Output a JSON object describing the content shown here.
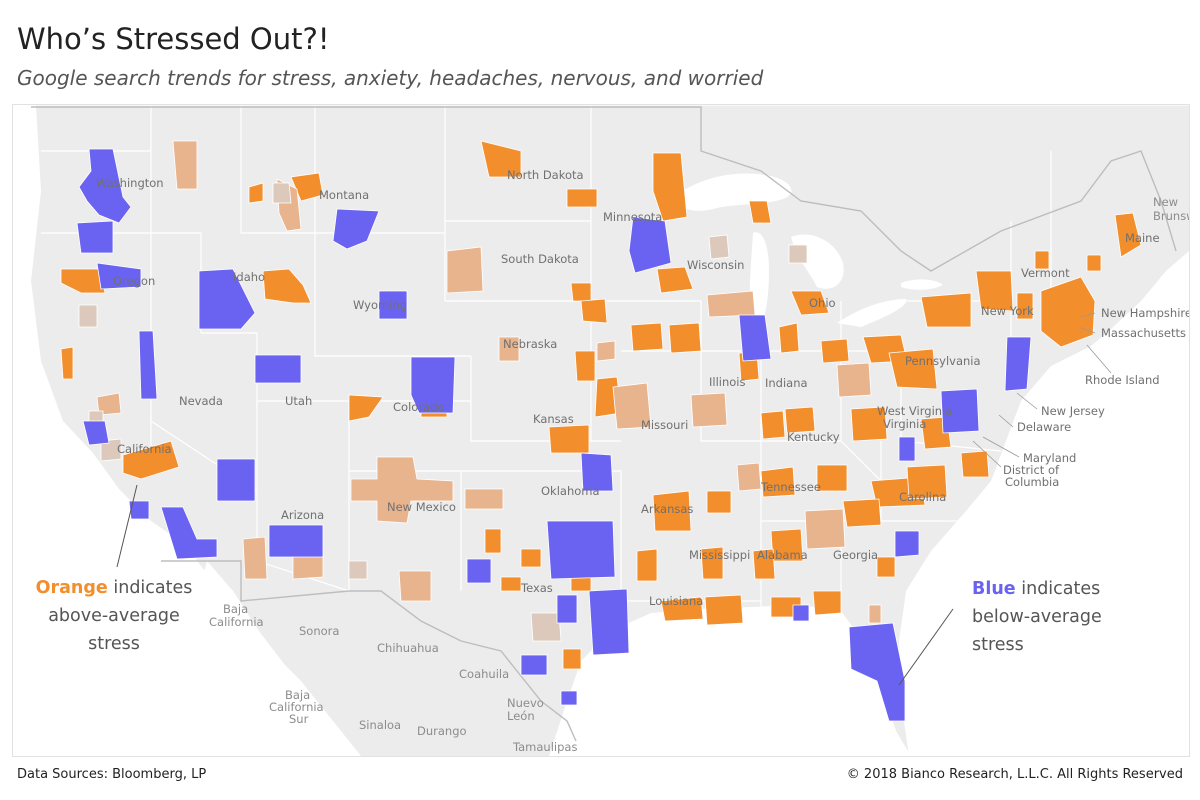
{
  "header": {
    "title": "Who’s Stressed Out?!",
    "subtitle": "Google search trends for stress, anxiety, headaches, nervous, and worried"
  },
  "legend": {
    "orange_word": "Orange",
    "orange_rest": [
      "indicates",
      "above-average",
      "stress"
    ],
    "blue_word": "Blue",
    "blue_rest": [
      "indicates",
      "below-average",
      "stress"
    ]
  },
  "colors": {
    "above_average": "#f28e2b",
    "near_average_high": "#e8b48e",
    "near_average": "#dcc9bb",
    "below_average": "#6a63f2",
    "land": "#ececec",
    "water": "#ffffff"
  },
  "map_labels": {
    "states": [
      "Washington",
      "Oregon",
      "California",
      "Nevada",
      "Idaho",
      "Montana",
      "Wyoming",
      "Utah",
      "Arizona",
      "Colorado",
      "New Mexico",
      "North Dakota",
      "South Dakota",
      "Nebraska",
      "Kansas",
      "Oklahoma",
      "Texas",
      "Minnesota",
      "Wisconsin",
      "Illinois",
      "Missouri",
      "Arkansas",
      "Louisiana",
      "Mississippi",
      "Alabama",
      "Georgia",
      "Tennessee",
      "Kentucky",
      "Indiana",
      "Ohio",
      "West Virginia",
      "Pennsylvania",
      "New York",
      "Vermont",
      "Maine",
      "Carolina",
      "Virginia"
    ],
    "east_callouts": [
      "New Hampshire",
      "Massachusetts",
      "Rhode Island",
      "New Jersey",
      "Delaware",
      "Maryland",
      "District of",
      "Columbia"
    ],
    "foreign": [
      "New",
      "Brunswick",
      "Baja",
      "California",
      "Sonora",
      "Chihuahua",
      "Coahuila",
      "Baja",
      "California",
      "Sur",
      "Sinaloa",
      "Durango",
      "Nuevo",
      "León",
      "Tamaulipas"
    ]
  },
  "footer": {
    "source": "Data Sources: Bloomberg, LP",
    "copyright": "© 2018 Bianco Research, L.L.C. All Rights Reserved"
  }
}
